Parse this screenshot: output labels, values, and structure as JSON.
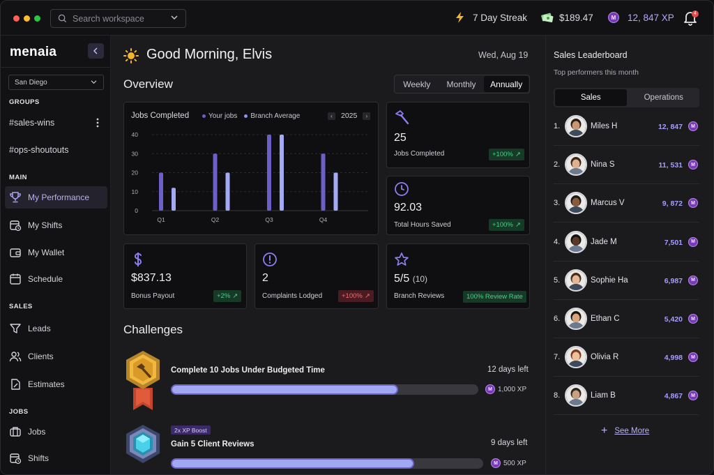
{
  "window": {
    "dot_colors": [
      "#ff5f57",
      "#febc2e",
      "#28c840"
    ]
  },
  "search": {
    "placeholder": "Search workspace"
  },
  "topbar": {
    "streak": "7 Day Streak",
    "balance": "$189.47",
    "xp": "12, 847 XP",
    "notifications": "4"
  },
  "sidebar": {
    "logo": "menaia",
    "city": "San Diego",
    "groups_header": "GROUPS",
    "groups": [
      "#sales-wins",
      "#ops-shoutouts"
    ],
    "main_header": "MAIN",
    "main": [
      {
        "label": "My Performance",
        "icon": "trophy-icon",
        "active": true
      },
      {
        "label": "My Shifts",
        "icon": "calendar-clock-icon"
      },
      {
        "label": "My Wallet",
        "icon": "wallet-icon"
      },
      {
        "label": "Schedule",
        "icon": "calendar-icon"
      }
    ],
    "sales_header": "SALES",
    "sales": [
      {
        "label": "Leads",
        "icon": "filter-icon"
      },
      {
        "label": "Clients",
        "icon": "users-icon"
      },
      {
        "label": "Estimates",
        "icon": "document-icon"
      }
    ],
    "jobs_header": "JOBS",
    "jobs": [
      {
        "label": "Jobs",
        "icon": "briefcase-icon"
      },
      {
        "label": "Shifts",
        "icon": "calendar-clock-icon"
      }
    ]
  },
  "header": {
    "greeting": "Good Morning, Elvis",
    "date": "Wed, Aug 19",
    "overview": "Overview",
    "periods": [
      "Weekly",
      "Monthly",
      "Annually"
    ],
    "active_period": "Annually"
  },
  "chart_data": {
    "type": "bar",
    "title": "Jobs Completed",
    "year": "2025",
    "categories": [
      "Q1",
      "Q2",
      "Q3",
      "Q4"
    ],
    "series": [
      {
        "name": "Your jobs",
        "values": [
          20,
          30,
          40,
          30
        ],
        "color": "#6c5fc7"
      },
      {
        "name": "Branch Average",
        "values": [
          12,
          20,
          40,
          20
        ],
        "color": "#a3a9f2"
      }
    ],
    "yticks": [
      0,
      10,
      20,
      30,
      40
    ],
    "ylim": [
      0,
      40
    ],
    "grid": true
  },
  "stats": {
    "jobs": {
      "value": "25",
      "label": "Jobs Completed",
      "change": "+100%",
      "icon": "hammer-icon"
    },
    "hours": {
      "value": "92.03",
      "label": "Total Hours Saved",
      "change": "+100%",
      "icon": "clock-icon"
    },
    "payout": {
      "value": "$837.13",
      "label": "Bonus Payout",
      "change": "+2%",
      "icon": "dollar-icon"
    },
    "complaints": {
      "value": "2",
      "label": "Complaints Lodged",
      "change": "+100%",
      "icon": "alert-icon"
    },
    "reviews": {
      "value": "5/5",
      "count": "(10)",
      "label": "Branch Reviews",
      "badge": "100% Review Rate",
      "icon": "star-icon"
    }
  },
  "challenges": {
    "header": "Challenges",
    "items": [
      {
        "title": "Complete 10 Jobs Under Budgeted Time",
        "days": "12 days left",
        "xp": "1,000 XP",
        "progress": 0.74,
        "badge_color": "#d9a53a"
      },
      {
        "title": "Gain 5 Client Reviews",
        "days": "9 days left",
        "xp": "500 XP",
        "progress": 0.78,
        "boost": "2x XP Boost",
        "badge_color": "#5a6aa6"
      }
    ]
  },
  "leaderboard": {
    "title": "Sales Leaderboard",
    "subtitle": "Top performers this month",
    "tabs": [
      "Sales",
      "Operations"
    ],
    "active_tab": "Sales",
    "rows": [
      {
        "rank": "1.",
        "name": "Miles H",
        "xp": "12, 847"
      },
      {
        "rank": "2.",
        "name": "Nina S",
        "xp": "11, 531"
      },
      {
        "rank": "3.",
        "name": "Marcus V",
        "xp": "9, 872"
      },
      {
        "rank": "4.",
        "name": "Jade M",
        "xp": "7,501"
      },
      {
        "rank": "5.",
        "name": "Sophie Ha",
        "xp": "6,987"
      },
      {
        "rank": "6.",
        "name": "Ethan C",
        "xp": "5,420"
      },
      {
        "rank": "7.",
        "name": "Olivia R",
        "xp": "4,998"
      },
      {
        "rank": "8.",
        "name": "Liam B",
        "xp": "4,867"
      }
    ],
    "see_more": "See More",
    "coin_letter": "M"
  }
}
